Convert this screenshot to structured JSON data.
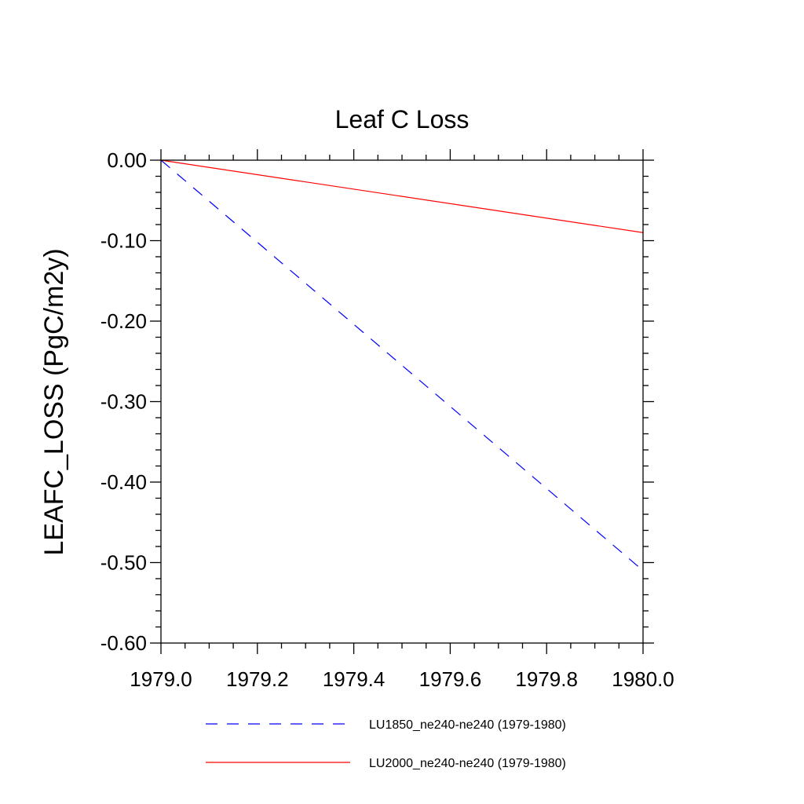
{
  "chart_data": {
    "type": "line",
    "title": "Leaf C Loss",
    "xlabel": "",
    "ylabel": "LEAFC_LOSS  (PgC/m2y)",
    "xlim": [
      1979.0,
      1980.0
    ],
    "ylim": [
      -0.6,
      0.0
    ],
    "x_ticks": [
      1979.0,
      1979.2,
      1979.4,
      1979.6,
      1979.8,
      1980.0
    ],
    "x_tick_labels": [
      "1979.0",
      "1979.2",
      "1979.4",
      "1979.6",
      "1979.8",
      "1980.0"
    ],
    "y_ticks": [
      0.0,
      -0.1,
      -0.2,
      -0.3,
      -0.4,
      -0.5,
      -0.6
    ],
    "y_tick_labels": [
      "0.00",
      "-0.10",
      "-0.20",
      "-0.30",
      "-0.40",
      "-0.50",
      "-0.60"
    ],
    "grid": false,
    "legend_position": "bottom",
    "series": [
      {
        "name": "LU1850_ne240-ne240 (1979-1980)",
        "color": "#0000ff",
        "dash": "dashed",
        "x": [
          1979.0,
          1980.0
        ],
        "y": [
          0.0,
          -0.51
        ]
      },
      {
        "name": "LU2000_ne240-ne240 (1979-1980)",
        "color": "#ff0000",
        "dash": "solid",
        "x": [
          1979.0,
          1980.0
        ],
        "y": [
          0.0,
          -0.09
        ]
      }
    ]
  }
}
